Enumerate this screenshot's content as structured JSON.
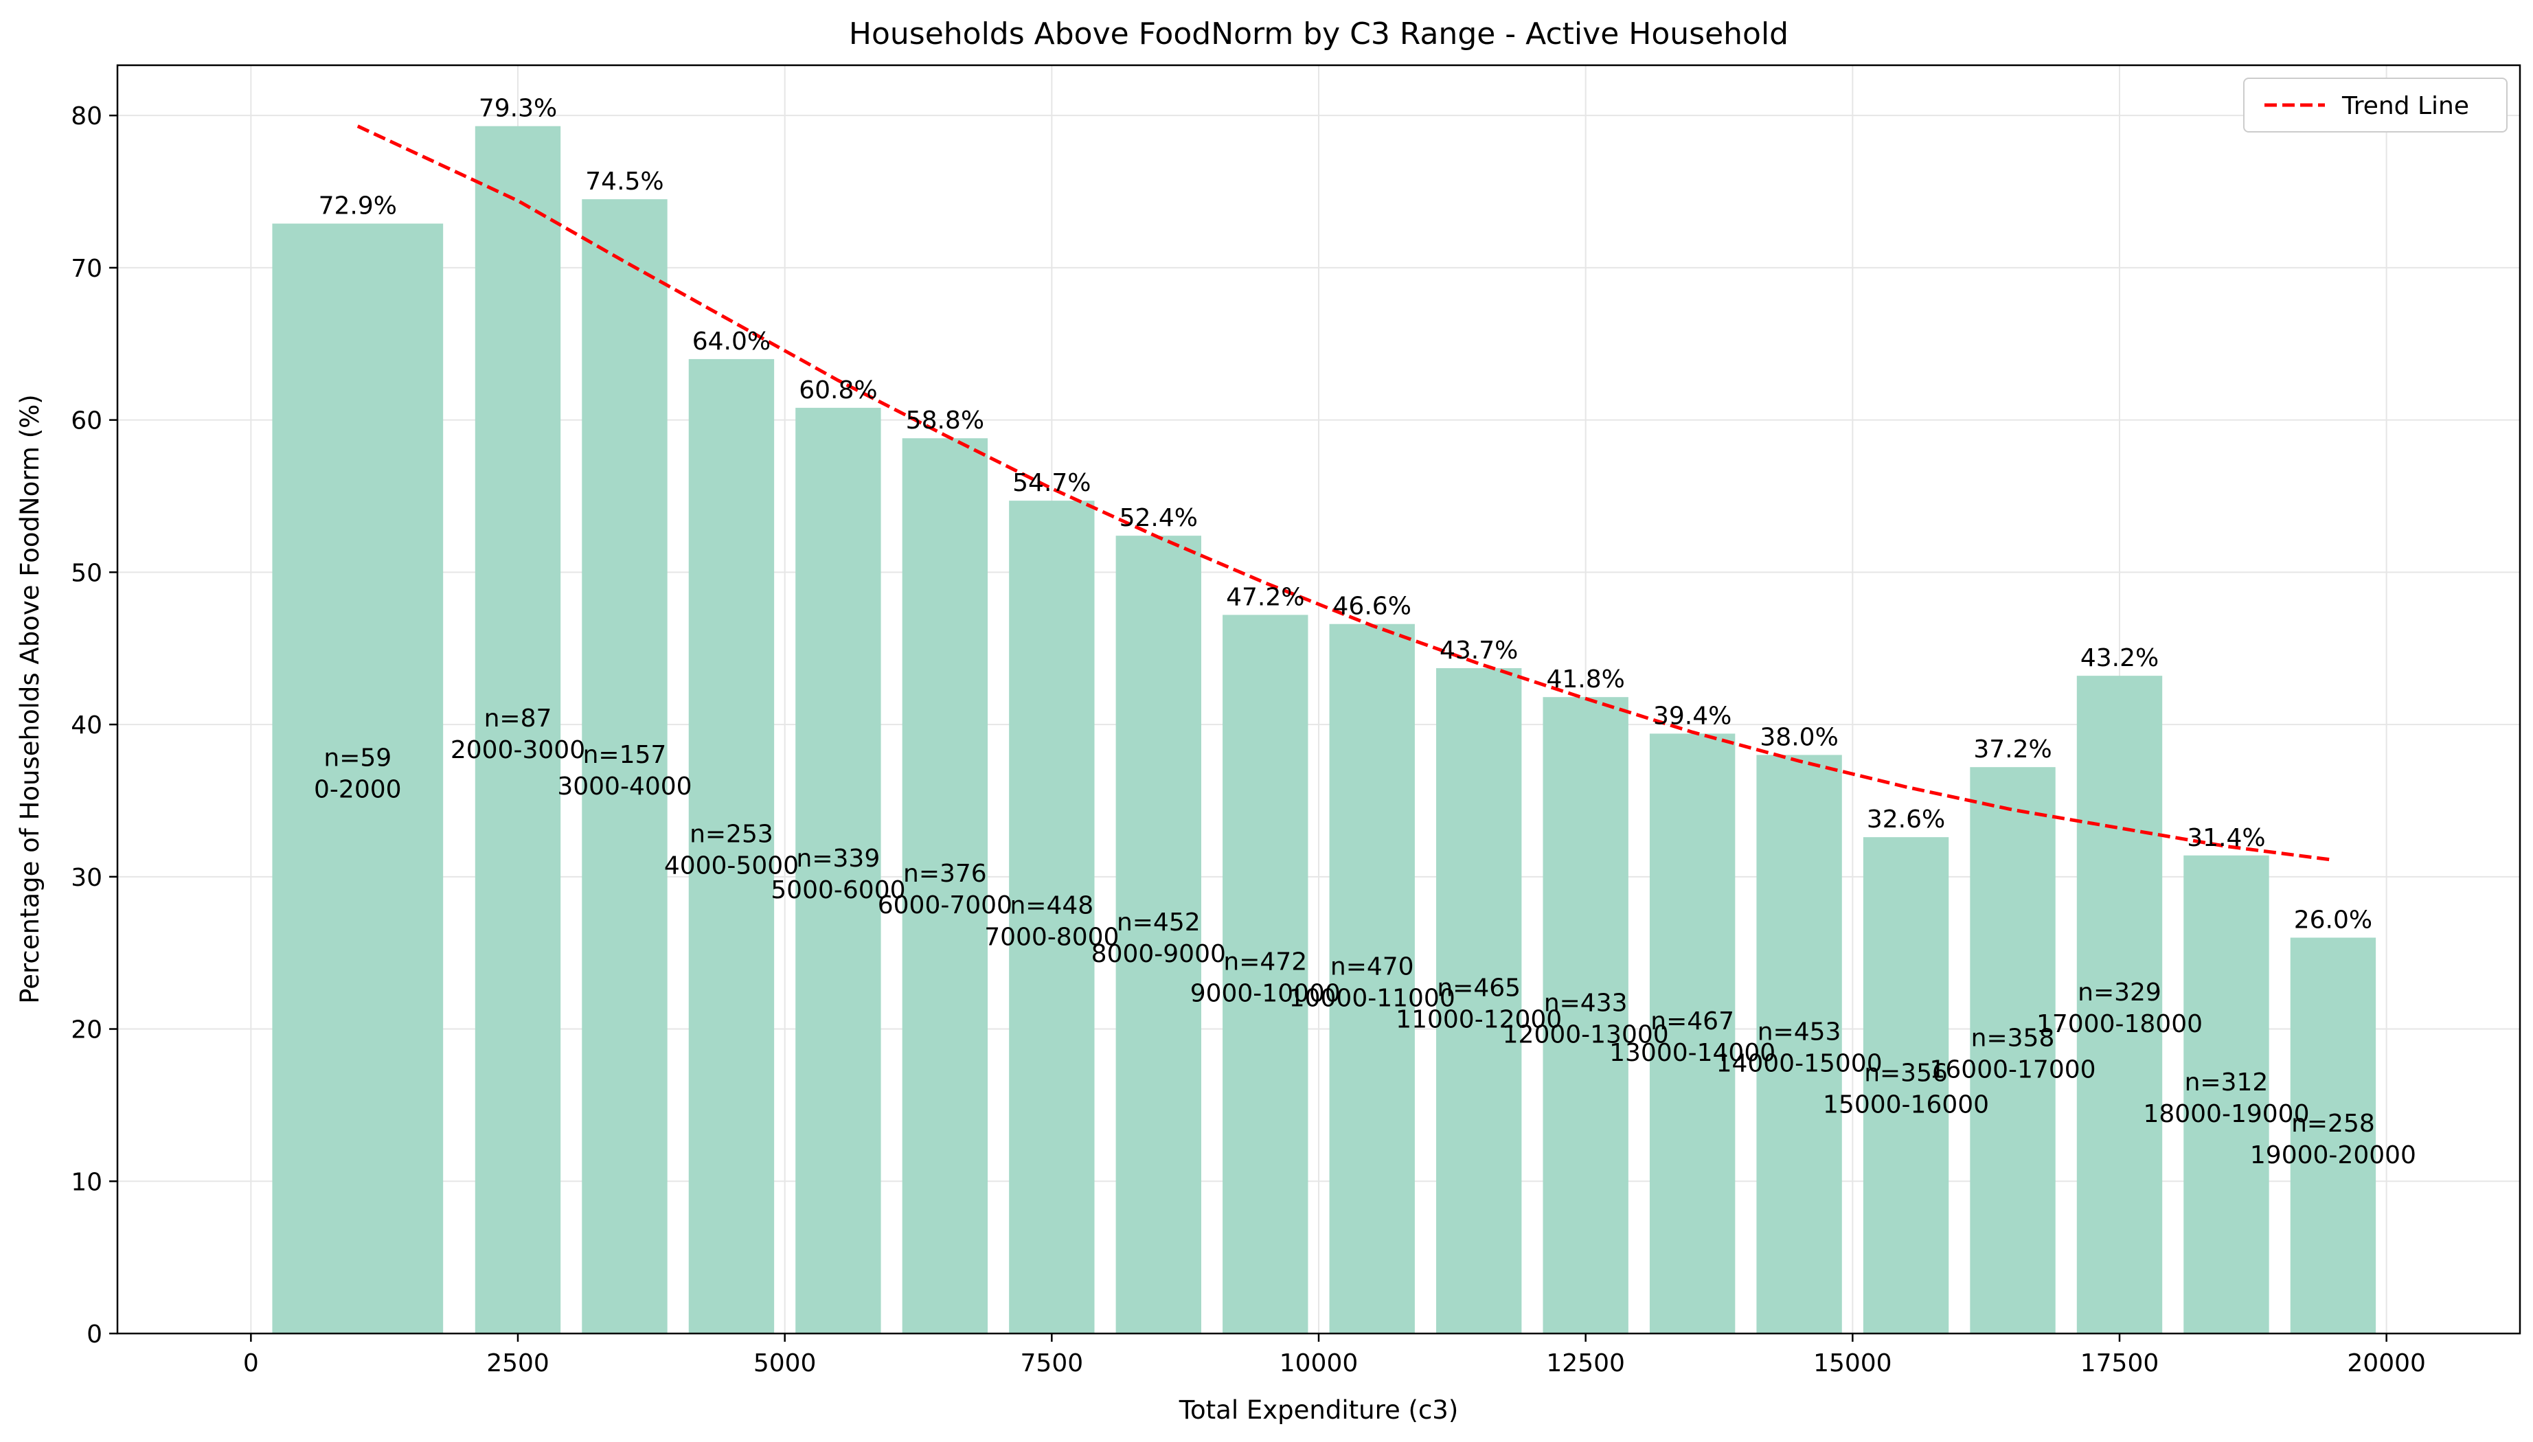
{
  "chart_data": {
    "type": "bar",
    "title": "Households Above FoodNorm by C3 Range - Active Household",
    "xlabel": "Total Expenditure (c3)",
    "ylabel": "Percentage of Households Above FoodNorm (%)",
    "xlim": [
      -1250,
      21250
    ],
    "ylim": [
      0,
      83.3
    ],
    "xticks": [
      0,
      2500,
      5000,
      7500,
      10000,
      12500,
      15000,
      17500,
      20000
    ],
    "yticks": [
      0,
      10,
      20,
      30,
      40,
      50,
      60,
      70,
      80
    ],
    "grid": true,
    "legend_position": "upper right",
    "colors": {
      "bar": "#a6d9c8",
      "trend": "#ff0000",
      "grid": "#e6e6e6"
    },
    "bars": [
      {
        "range": "0-2000",
        "x_start": 200,
        "x_end": 1800,
        "value": 72.9,
        "value_label": "72.9%",
        "count_label": "n=59",
        "label_y": 37
      },
      {
        "range": "2000-3000",
        "x_start": 2100,
        "x_end": 2900,
        "value": 79.3,
        "value_label": "79.3%",
        "count_label": "n=87",
        "label_y": 39.6
      },
      {
        "range": "3000-4000",
        "x_start": 3100,
        "x_end": 3900,
        "value": 74.5,
        "value_label": "74.5%",
        "count_label": "n=157",
        "label_y": 37.2
      },
      {
        "range": "4000-5000",
        "x_start": 4100,
        "x_end": 4900,
        "value": 64.0,
        "value_label": "64.0%",
        "count_label": "n=253",
        "label_y": 32
      },
      {
        "range": "5000-6000",
        "x_start": 5100,
        "x_end": 5900,
        "value": 60.8,
        "value_label": "60.8%",
        "count_label": "n=339",
        "label_y": 30.4
      },
      {
        "range": "6000-7000",
        "x_start": 6100,
        "x_end": 6900,
        "value": 58.8,
        "value_label": "58.8%",
        "count_label": "n=376",
        "label_y": 29.4
      },
      {
        "range": "7000-8000",
        "x_start": 7100,
        "x_end": 7900,
        "value": 54.7,
        "value_label": "54.7%",
        "count_label": "n=448",
        "label_y": 27.3
      },
      {
        "range": "8000-9000",
        "x_start": 8100,
        "x_end": 8900,
        "value": 52.4,
        "value_label": "52.4%",
        "count_label": "n=452",
        "label_y": 26.2
      },
      {
        "range": "9000-10000",
        "x_start": 9100,
        "x_end": 9900,
        "value": 47.2,
        "value_label": "47.2%",
        "count_label": "n=472",
        "label_y": 23.6
      },
      {
        "range": "10000-11000",
        "x_start": 10100,
        "x_end": 10900,
        "value": 46.6,
        "value_label": "46.6%",
        "count_label": "n=470",
        "label_y": 23.3
      },
      {
        "range": "11000-12000",
        "x_start": 11100,
        "x_end": 11900,
        "value": 43.7,
        "value_label": "43.7%",
        "count_label": "n=465",
        "label_y": 21.9
      },
      {
        "range": "12000-13000",
        "x_start": 12100,
        "x_end": 12900,
        "value": 41.8,
        "value_label": "41.8%",
        "count_label": "n=433",
        "label_y": 20.9
      },
      {
        "range": "13000-14000",
        "x_start": 13100,
        "x_end": 13900,
        "value": 39.4,
        "value_label": "39.4%",
        "count_label": "n=467",
        "label_y": 19.7
      },
      {
        "range": "14000-15000",
        "x_start": 14100,
        "x_end": 14900,
        "value": 38.0,
        "value_label": "38.0%",
        "count_label": "n=453",
        "label_y": 19
      },
      {
        "range": "15000-16000",
        "x_start": 15100,
        "x_end": 15900,
        "value": 32.6,
        "value_label": "32.6%",
        "count_label": "n=356",
        "label_y": 16.3
      },
      {
        "range": "16000-17000",
        "x_start": 16100,
        "x_end": 16900,
        "value": 37.2,
        "value_label": "37.2%",
        "count_label": "n=358",
        "label_y": 18.6
      },
      {
        "range": "17000-18000",
        "x_start": 17100,
        "x_end": 17900,
        "value": 43.2,
        "value_label": "43.2%",
        "count_label": "n=329",
        "label_y": 21.6
      },
      {
        "range": "18000-19000",
        "x_start": 18100,
        "x_end": 18900,
        "value": 31.4,
        "value_label": "31.4%",
        "count_label": "n=312",
        "label_y": 15.7
      },
      {
        "range": "19000-20000",
        "x_start": 19100,
        "x_end": 19900,
        "value": 26.0,
        "value_label": "26.0%",
        "count_label": "n=258",
        "label_y": 13
      }
    ],
    "trend": {
      "name": "Trend Line",
      "style": "dashed",
      "x": [
        1000,
        2500,
        3500,
        4500,
        5500,
        6500,
        7500,
        8500,
        9500,
        10500,
        11500,
        12500,
        13500,
        14500,
        15500,
        16500,
        17500,
        18500,
        19500
      ],
      "y": [
        79.3,
        74.4,
        70.4,
        66.5,
        62.6,
        59.0,
        55.5,
        52.3,
        49.3,
        46.5,
        44.0,
        41.7,
        39.5,
        37.6,
        35.9,
        34.4,
        33.2,
        32.0,
        31.1
      ]
    }
  }
}
